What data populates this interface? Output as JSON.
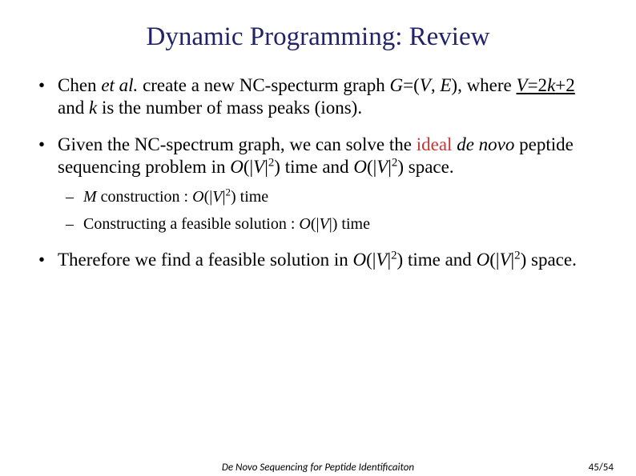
{
  "title": "Dynamic Programming: Review",
  "bullets": {
    "b1": {
      "p1": "Chen ",
      "etal": "et al.",
      "p2": " create a new NC-specturm graph ",
      "gve1": "G",
      "p3": "=(",
      "gve2": "V",
      "p4": ", ",
      "gve3": "E",
      "p5": "), where ",
      "veq": "V",
      "eq": "=2",
      "kvar": "k",
      "plus2": "+2",
      "p6": " and ",
      "kvar2": "k",
      "p7": " is the number of mass peaks (ions)."
    },
    "b2": {
      "p1": "Given the NC-spectrum graph, we can solve the ",
      "ideal": "ideal ",
      "denovo": "de novo",
      "p2": " peptide sequencing problem in ",
      "o1": "O",
      "paren1": "(|",
      "v1": "V",
      "paren2": "|",
      "exp1": "2",
      "paren3": ")",
      "p3": " time and ",
      "o2": "O",
      "paren4": "(|",
      "v2": "V",
      "paren5": "|",
      "exp2": "2",
      "paren6": ")",
      "p4": " space."
    },
    "sub1": {
      "mvar": "M",
      "p1": " construction : ",
      "o1": "O",
      "paren1": "(|",
      "v1": "V",
      "paren2": "|",
      "exp1": "2",
      "paren3": ")",
      "p2": " time"
    },
    "sub2": {
      "p1": "Constructing a feasible solution : ",
      "o1": "O",
      "paren1": "(|",
      "v1": "V",
      "paren2": "|)",
      "p2": " time"
    },
    "b3": {
      "p1": "Therefore we find a feasible solution in ",
      "o1": "O",
      "paren1": "(|",
      "v1": "V",
      "paren2": "|",
      "exp1": "2",
      "paren3": ")",
      "p2": " time and ",
      "o2": "O",
      "paren4": "(|",
      "v2": "V",
      "paren5": "|",
      "exp2": "2",
      "paren6": ")",
      "p3": " space."
    }
  },
  "footer": {
    "center": "De Novo Sequencing for Peptide Identificaiton",
    "page": "45/54"
  },
  "colors": {
    "title": "#222268",
    "red": "#cc3333",
    "background": "#ffffff",
    "text": "#000000"
  },
  "typography": {
    "title_fontsize": 33,
    "body_fontsize": 23,
    "sub_fontsize": 20,
    "footer_fontsize": 13
  }
}
